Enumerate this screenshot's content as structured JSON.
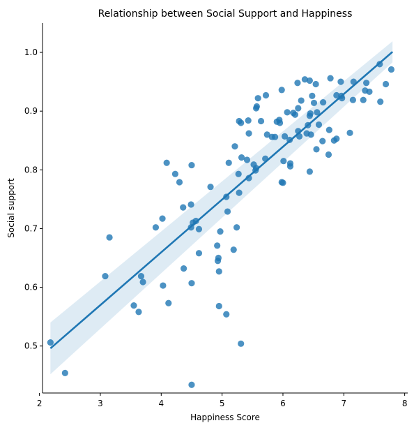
{
  "chart_data": {
    "type": "scatter",
    "title": "Relationship between Social Support and Happiness",
    "xlabel": "Happiness Score",
    "ylabel": "Social support",
    "xlim": [
      2.05,
      8.05
    ],
    "ylim": [
      0.42,
      1.05
    ],
    "xticks": [
      2,
      3,
      4,
      5,
      6,
      7,
      8
    ],
    "yticks": [
      0.5,
      0.6,
      0.7,
      0.8,
      0.9,
      1.0
    ],
    "ytick_labels": [
      "0.5",
      "0.6",
      "0.7",
      "0.8",
      "0.9",
      "1.0"
    ],
    "grid": false,
    "point_color": "#1f77b4",
    "point_opacity": 0.8,
    "regression": {
      "x": [
        2.18,
        7.8
      ],
      "y": [
        0.496,
        1.001
      ],
      "line_color": "#1f77b4",
      "band_color": "#1f77b4",
      "band_opacity": 0.15,
      "ci_lower_y": [
        0.452,
        0.983
      ],
      "ci_upper_y": [
        0.54,
        1.019
      ]
    },
    "points": [
      [
        2.18,
        0.506
      ],
      [
        2.42,
        0.454
      ],
      [
        3.08,
        0.619
      ],
      [
        3.15,
        0.685
      ],
      [
        3.55,
        0.569
      ],
      [
        3.63,
        0.558
      ],
      [
        3.67,
        0.619
      ],
      [
        3.7,
        0.609
      ],
      [
        3.91,
        0.702
      ],
      [
        4.02,
        0.717
      ],
      [
        4.03,
        0.603
      ],
      [
        4.09,
        0.812
      ],
      [
        4.12,
        0.573
      ],
      [
        4.23,
        0.793
      ],
      [
        4.3,
        0.779
      ],
      [
        4.36,
        0.736
      ],
      [
        4.37,
        0.632
      ],
      [
        4.49,
        0.741
      ],
      [
        4.5,
        0.808
      ],
      [
        4.5,
        0.607
      ],
      [
        4.49,
        0.702
      ],
      [
        4.52,
        0.71
      ],
      [
        4.57,
        0.713
      ],
      [
        4.62,
        0.699
      ],
      [
        4.62,
        0.658
      ],
      [
        4.5,
        0.434
      ],
      [
        4.81,
        0.771
      ],
      [
        4.92,
        0.671
      ],
      [
        4.93,
        0.645
      ],
      [
        4.94,
        0.65
      ],
      [
        4.95,
        0.627
      ],
      [
        4.95,
        0.568
      ],
      [
        4.97,
        0.695
      ],
      [
        5.07,
        0.754
      ],
      [
        5.07,
        0.554
      ],
      [
        5.09,
        0.729
      ],
      [
        5.11,
        0.812
      ],
      [
        5.19,
        0.664
      ],
      [
        5.21,
        0.84
      ],
      [
        5.24,
        0.702
      ],
      [
        5.27,
        0.793
      ],
      [
        5.28,
        0.761
      ],
      [
        5.28,
        0.883
      ],
      [
        5.31,
        0.88
      ],
      [
        5.31,
        0.504
      ],
      [
        5.32,
        0.821
      ],
      [
        5.41,
        0.817
      ],
      [
        5.43,
        0.884
      ],
      [
        5.44,
        0.862
      ],
      [
        5.44,
        0.786
      ],
      [
        5.52,
        0.809
      ],
      [
        5.55,
        0.799
      ],
      [
        5.56,
        0.803
      ],
      [
        5.56,
        0.905
      ],
      [
        5.57,
        0.908
      ],
      [
        5.59,
        0.922
      ],
      [
        5.64,
        0.883
      ],
      [
        5.71,
        0.819
      ],
      [
        5.72,
        0.927
      ],
      [
        5.74,
        0.86
      ],
      [
        5.82,
        0.856
      ],
      [
        5.87,
        0.856
      ],
      [
        5.9,
        0.882
      ],
      [
        5.94,
        0.885
      ],
      [
        5.95,
        0.88
      ],
      [
        5.98,
        0.779
      ],
      [
        5.98,
        0.936
      ],
      [
        6.0,
        0.778
      ],
      [
        6.01,
        0.815
      ],
      [
        6.03,
        0.857
      ],
      [
        6.07,
        0.898
      ],
      [
        6.11,
        0.851
      ],
      [
        6.12,
        0.811
      ],
      [
        6.12,
        0.806
      ],
      [
        6.17,
        0.897
      ],
      [
        6.2,
        0.894
      ],
      [
        6.24,
        0.948
      ],
      [
        6.25,
        0.866
      ],
      [
        6.25,
        0.905
      ],
      [
        6.27,
        0.857
      ],
      [
        6.3,
        0.918
      ],
      [
        6.36,
        0.954
      ],
      [
        6.39,
        0.862
      ],
      [
        6.41,
        0.876
      ],
      [
        6.44,
        0.952
      ],
      [
        6.44,
        0.892
      ],
      [
        6.44,
        0.797
      ],
      [
        6.45,
        0.896
      ],
      [
        6.46,
        0.86
      ],
      [
        6.48,
        0.926
      ],
      [
        6.51,
        0.914
      ],
      [
        6.54,
        0.946
      ],
      [
        6.55,
        0.835
      ],
      [
        6.56,
        0.898
      ],
      [
        6.59,
        0.877
      ],
      [
        6.65,
        0.849
      ],
      [
        6.66,
        0.915
      ],
      [
        6.75,
        0.826
      ],
      [
        6.76,
        0.868
      ],
      [
        6.78,
        0.956
      ],
      [
        6.84,
        0.85
      ],
      [
        6.88,
        0.927
      ],
      [
        6.88,
        0.853
      ],
      [
        6.95,
        0.95
      ],
      [
        6.96,
        0.926
      ],
      [
        6.97,
        0.922
      ],
      [
        7.1,
        0.863
      ],
      [
        7.15,
        0.919
      ],
      [
        7.16,
        0.95
      ],
      [
        7.32,
        0.919
      ],
      [
        7.35,
        0.935
      ],
      [
        7.37,
        0.948
      ],
      [
        7.42,
        0.933
      ],
      [
        7.59,
        0.98
      ],
      [
        7.6,
        0.916
      ],
      [
        7.69,
        0.946
      ],
      [
        7.78,
        0.971
      ]
    ]
  }
}
